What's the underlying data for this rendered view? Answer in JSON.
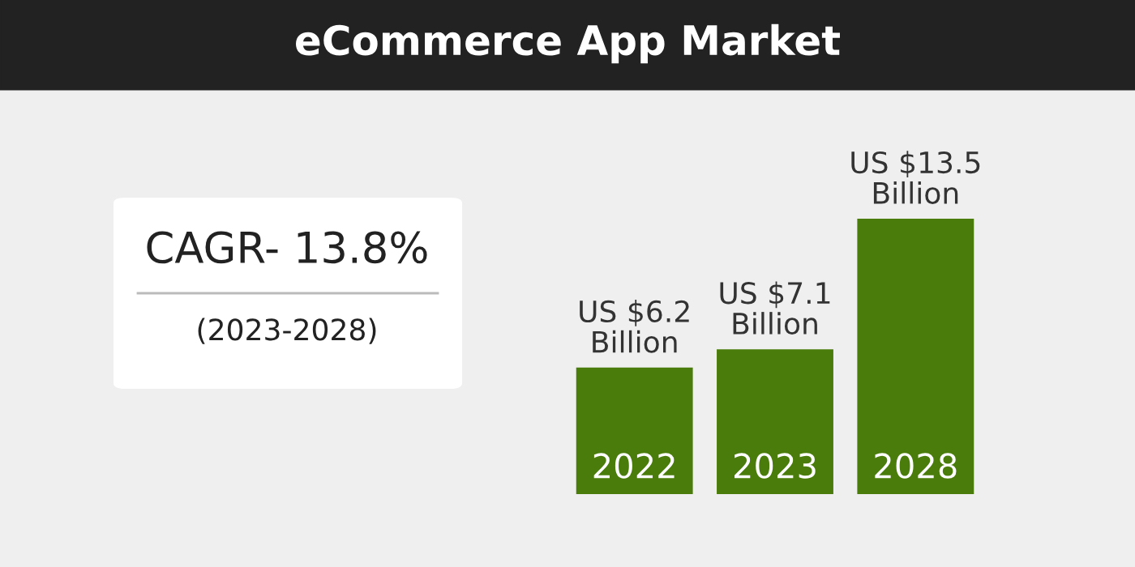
{
  "chart_data": {
    "type": "bar",
    "title": "eCommerce App Market",
    "categories": [
      "2022",
      "2023",
      "2028"
    ],
    "values": [
      6.2,
      7.1,
      13.5
    ],
    "value_labels": [
      "US $6.2\nBillion",
      "US $7.1\nBillion",
      "US $13.5\nBillion"
    ],
    "color": "#4a7c0b",
    "annotations": [
      "CAGR- 13.8%",
      "(2023-2028)"
    ]
  }
}
